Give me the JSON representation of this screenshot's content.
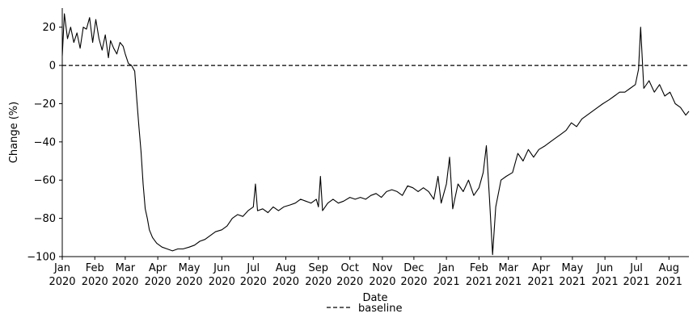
{
  "chart_data": {
    "type": "line",
    "title": "",
    "xlabel": "Date",
    "ylabel": "Change (%)",
    "ylim": [
      -100,
      30
    ],
    "xlim": [
      "2020-01-01",
      "2021-08-20"
    ],
    "grid": false,
    "legend": {
      "placement": "bottom-center",
      "entries": [
        {
          "label": "baseline",
          "style": "dashed"
        }
      ]
    },
    "y_ticks": [
      20,
      0,
      -20,
      -40,
      -60,
      -80,
      -100
    ],
    "y_tick_labels": [
      "20",
      "0",
      "−20",
      "−40",
      "−60",
      "−80",
      "−100"
    ],
    "x_ticks": [
      {
        "date": "2020-01-01",
        "month": "Jan",
        "year": "2020"
      },
      {
        "date": "2020-02-01",
        "month": "Feb",
        "year": "2020"
      },
      {
        "date": "2020-03-01",
        "month": "Mar",
        "year": "2020"
      },
      {
        "date": "2020-04-01",
        "month": "Apr",
        "year": "2020"
      },
      {
        "date": "2020-05-01",
        "month": "May",
        "year": "2020"
      },
      {
        "date": "2020-06-01",
        "month": "Jun",
        "year": "2020"
      },
      {
        "date": "2020-07-01",
        "month": "Jul",
        "year": "2020"
      },
      {
        "date": "2020-08-01",
        "month": "Aug",
        "year": "2020"
      },
      {
        "date": "2020-09-01",
        "month": "Sep",
        "year": "2020"
      },
      {
        "date": "2020-10-01",
        "month": "Oct",
        "year": "2020"
      },
      {
        "date": "2020-11-01",
        "month": "Nov",
        "year": "2020"
      },
      {
        "date": "2020-12-01",
        "month": "Dec",
        "year": "2020"
      },
      {
        "date": "2021-01-01",
        "month": "Jan",
        "year": "2021"
      },
      {
        "date": "2021-02-01",
        "month": "Feb",
        "year": "2021"
      },
      {
        "date": "2021-03-01",
        "month": "Mar",
        "year": "2021"
      },
      {
        "date": "2021-04-01",
        "month": "Apr",
        "year": "2021"
      },
      {
        "date": "2021-05-01",
        "month": "May",
        "year": "2021"
      },
      {
        "date": "2021-06-01",
        "month": "Jun",
        "year": "2021"
      },
      {
        "date": "2021-07-01",
        "month": "Jul",
        "year": "2021"
      },
      {
        "date": "2021-08-01",
        "month": "Aug",
        "year": "2021"
      }
    ],
    "series": [
      {
        "color": "#000000",
        "style": "solid",
        "points": [
          [
            "2020-01-01",
            5
          ],
          [
            "2020-01-03",
            27
          ],
          [
            "2020-01-06",
            14
          ],
          [
            "2020-01-09",
            20
          ],
          [
            "2020-01-12",
            12
          ],
          [
            "2020-01-15",
            17
          ],
          [
            "2020-01-18",
            9
          ],
          [
            "2020-01-21",
            20
          ],
          [
            "2020-01-24",
            19
          ],
          [
            "2020-01-27",
            25
          ],
          [
            "2020-01-30",
            12
          ],
          [
            "2020-02-02",
            24
          ],
          [
            "2020-02-05",
            14
          ],
          [
            "2020-02-08",
            8
          ],
          [
            "2020-02-11",
            16
          ],
          [
            "2020-02-14",
            4
          ],
          [
            "2020-02-16",
            13
          ],
          [
            "2020-02-19",
            9
          ],
          [
            "2020-02-22",
            6
          ],
          [
            "2020-02-25",
            12
          ],
          [
            "2020-02-28",
            10
          ],
          [
            "2020-03-01",
            6
          ],
          [
            "2020-03-04",
            1
          ],
          [
            "2020-03-07",
            0
          ],
          [
            "2020-03-10",
            -3
          ],
          [
            "2020-03-12",
            -18
          ],
          [
            "2020-03-14",
            -32
          ],
          [
            "2020-03-16",
            -45
          ],
          [
            "2020-03-18",
            -62
          ],
          [
            "2020-03-20",
            -75
          ],
          [
            "2020-03-22",
            -80
          ],
          [
            "2020-03-24",
            -86
          ],
          [
            "2020-03-27",
            -90
          ],
          [
            "2020-03-31",
            -93
          ],
          [
            "2020-04-05",
            -95
          ],
          [
            "2020-04-10",
            -96
          ],
          [
            "2020-04-15",
            -97
          ],
          [
            "2020-04-20",
            -96
          ],
          [
            "2020-04-25",
            -96
          ],
          [
            "2020-05-01",
            -95
          ],
          [
            "2020-05-06",
            -94
          ],
          [
            "2020-05-11",
            -92
          ],
          [
            "2020-05-16",
            -91
          ],
          [
            "2020-05-21",
            -89
          ],
          [
            "2020-05-26",
            -87
          ],
          [
            "2020-06-01",
            -86
          ],
          [
            "2020-06-06",
            -84
          ],
          [
            "2020-06-11",
            -80
          ],
          [
            "2020-06-16",
            -78
          ],
          [
            "2020-06-21",
            -79
          ],
          [
            "2020-06-26",
            -76
          ],
          [
            "2020-07-01",
            -74
          ],
          [
            "2020-07-03",
            -62
          ],
          [
            "2020-07-05",
            -76
          ],
          [
            "2020-07-10",
            -75
          ],
          [
            "2020-07-15",
            -77
          ],
          [
            "2020-07-20",
            -74
          ],
          [
            "2020-07-25",
            -76
          ],
          [
            "2020-07-30",
            -74
          ],
          [
            "2020-08-05",
            -73
          ],
          [
            "2020-08-10",
            -72
          ],
          [
            "2020-08-15",
            -70
          ],
          [
            "2020-08-20",
            -71
          ],
          [
            "2020-08-25",
            -72
          ],
          [
            "2020-08-30",
            -70
          ],
          [
            "2020-09-01",
            -74
          ],
          [
            "2020-09-03",
            -58
          ],
          [
            "2020-09-05",
            -76
          ],
          [
            "2020-09-10",
            -72
          ],
          [
            "2020-09-15",
            -70
          ],
          [
            "2020-09-20",
            -72
          ],
          [
            "2020-09-25",
            -71
          ],
          [
            "2020-10-01",
            -69
          ],
          [
            "2020-10-06",
            -70
          ],
          [
            "2020-10-11",
            -69
          ],
          [
            "2020-10-16",
            -70
          ],
          [
            "2020-10-21",
            -68
          ],
          [
            "2020-10-26",
            -67
          ],
          [
            "2020-10-31",
            -69
          ],
          [
            "2020-11-05",
            -66
          ],
          [
            "2020-11-10",
            -65
          ],
          [
            "2020-11-15",
            -66
          ],
          [
            "2020-11-20",
            -68
          ],
          [
            "2020-11-25",
            -63
          ],
          [
            "2020-11-30",
            -64
          ],
          [
            "2020-12-05",
            -66
          ],
          [
            "2020-12-10",
            -64
          ],
          [
            "2020-12-15",
            -66
          ],
          [
            "2020-12-20",
            -70
          ],
          [
            "2020-12-24",
            -58
          ],
          [
            "2020-12-27",
            -72
          ],
          [
            "2021-01-01",
            -62
          ],
          [
            "2021-01-04",
            -48
          ],
          [
            "2021-01-07",
            -75
          ],
          [
            "2021-01-12",
            -62
          ],
          [
            "2021-01-17",
            -66
          ],
          [
            "2021-01-22",
            -60
          ],
          [
            "2021-01-27",
            -68
          ],
          [
            "2021-02-01",
            -64
          ],
          [
            "2021-02-05",
            -56
          ],
          [
            "2021-02-08",
            -42
          ],
          [
            "2021-02-11",
            -70
          ],
          [
            "2021-02-14",
            -99
          ],
          [
            "2021-02-17",
            -74
          ],
          [
            "2021-02-22",
            -60
          ],
          [
            "2021-02-27",
            -58
          ],
          [
            "2021-03-05",
            -56
          ],
          [
            "2021-03-10",
            -46
          ],
          [
            "2021-03-15",
            -50
          ],
          [
            "2021-03-20",
            -44
          ],
          [
            "2021-03-25",
            -48
          ],
          [
            "2021-03-30",
            -44
          ],
          [
            "2021-04-05",
            -42
          ],
          [
            "2021-04-10",
            -40
          ],
          [
            "2021-04-15",
            -38
          ],
          [
            "2021-04-20",
            -36
          ],
          [
            "2021-04-25",
            -34
          ],
          [
            "2021-04-30",
            -30
          ],
          [
            "2021-05-05",
            -32
          ],
          [
            "2021-05-10",
            -28
          ],
          [
            "2021-05-15",
            -26
          ],
          [
            "2021-05-20",
            -24
          ],
          [
            "2021-05-25",
            -22
          ],
          [
            "2021-05-30",
            -20
          ],
          [
            "2021-06-05",
            -18
          ],
          [
            "2021-06-10",
            -16
          ],
          [
            "2021-06-15",
            -14
          ],
          [
            "2021-06-20",
            -14
          ],
          [
            "2021-06-25",
            -12
          ],
          [
            "2021-06-30",
            -10
          ],
          [
            "2021-07-03",
            -2
          ],
          [
            "2021-07-05",
            20
          ],
          [
            "2021-07-08",
            -12
          ],
          [
            "2021-07-13",
            -8
          ],
          [
            "2021-07-18",
            -14
          ],
          [
            "2021-07-23",
            -10
          ],
          [
            "2021-07-28",
            -16
          ],
          [
            "2021-08-02",
            -14
          ],
          [
            "2021-08-07",
            -20
          ],
          [
            "2021-08-12",
            -22
          ],
          [
            "2021-08-17",
            -26
          ],
          [
            "2021-08-20",
            -24
          ]
        ]
      },
      {
        "name": "baseline",
        "color": "#000000",
        "style": "dashed",
        "points": [
          [
            "2020-01-01",
            0
          ],
          [
            "2021-08-20",
            0
          ]
        ]
      }
    ]
  }
}
